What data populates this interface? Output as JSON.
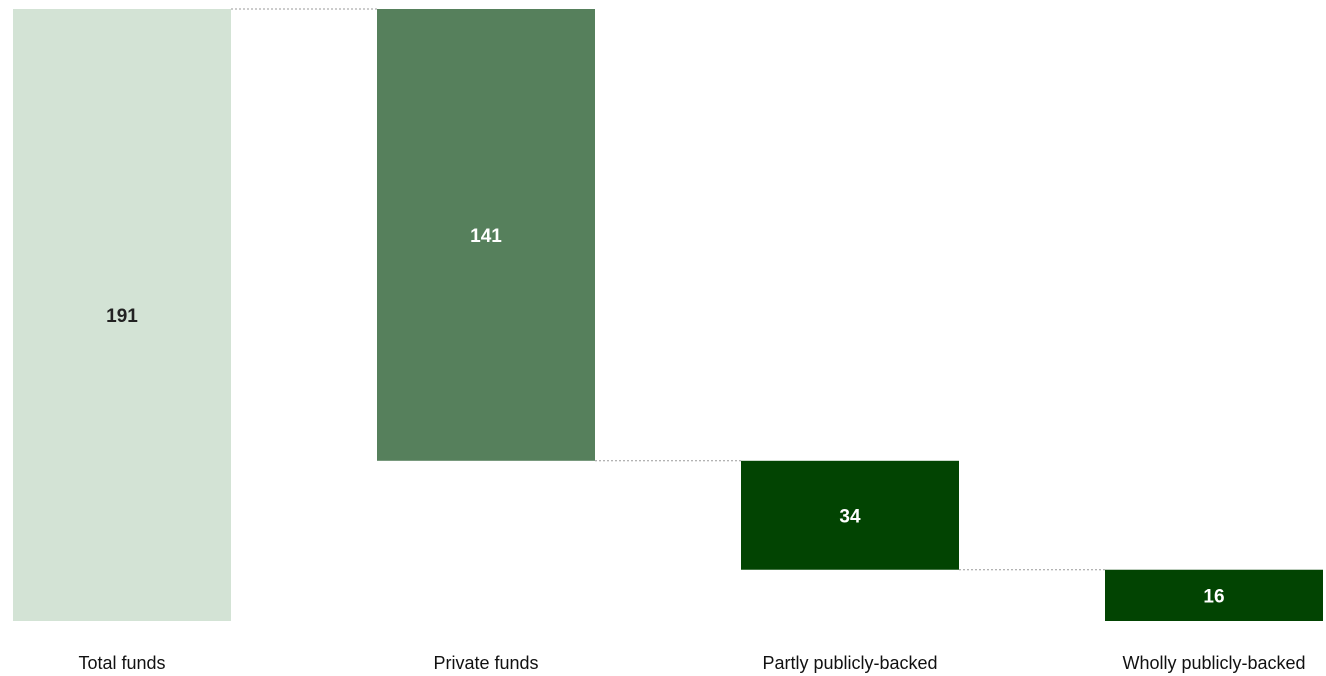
{
  "chart_data": {
    "type": "bar",
    "variant": "waterfall",
    "categories": [
      "Total funds",
      "Private funds",
      "Partly publicly-backed",
      "Wholly publicly-backed"
    ],
    "values": [
      191,
      141,
      34,
      16
    ],
    "bar_colors": [
      "#d3e3d5",
      "#56805c",
      "#024402",
      "#024402"
    ],
    "label_colors": [
      "#222222",
      "#ffffff",
      "#ffffff",
      "#ffffff"
    ],
    "connector_color": "#9a9a9a",
    "ylim": [
      0,
      191
    ],
    "grid": false,
    "legend": "none"
  }
}
